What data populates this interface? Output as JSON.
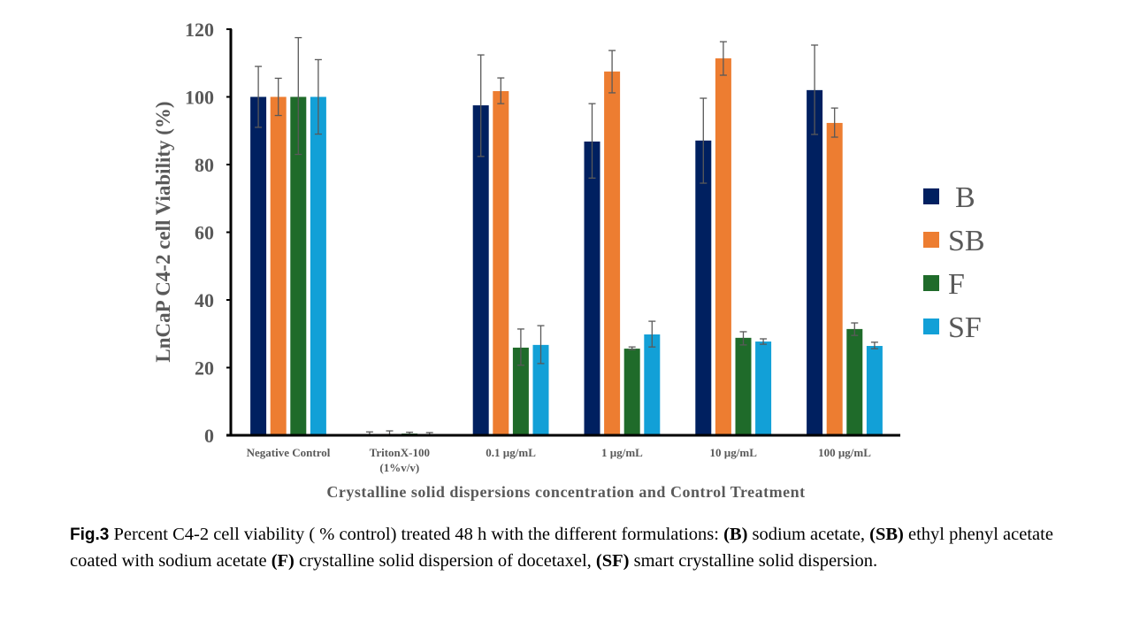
{
  "chart_data": {
    "type": "bar",
    "title": "",
    "xlabel": "Crystalline solid dispersions concentration and Control Treatment",
    "ylabel": "LnCaP C4-2  cell Viability (%)",
    "ylim": [
      0,
      120
    ],
    "yticks": [
      0,
      20,
      40,
      60,
      80,
      100,
      120
    ],
    "grid": false,
    "legend_position": "right",
    "categories": [
      "Negative Control",
      "TritonX-100\n(1%v/v)",
      "0.1 µg/mL",
      "1 µg/mL",
      "10 µg/mL",
      "100 µg/mL"
    ],
    "series": [
      {
        "name": "B",
        "color": "#002060",
        "values": [
          100,
          0.3,
          97.5,
          86.8,
          87.1,
          102.0
        ],
        "err_low": [
          91,
          0,
          82.4,
          76,
          74.5,
          88.9
        ],
        "err_high": [
          109,
          1.0,
          112.4,
          98,
          99.6,
          115.3
        ]
      },
      {
        "name": "SB",
        "color": "#ED7D31",
        "values": [
          100,
          0.4,
          101.7,
          107.5,
          111.4,
          92.3
        ],
        "err_low": [
          94.5,
          0,
          98.0,
          101.2,
          106.4,
          88.1
        ],
        "err_high": [
          105.5,
          1.3,
          105.6,
          113.7,
          116.3,
          96.7
        ]
      },
      {
        "name": "F",
        "color": "#1F6B2A",
        "values": [
          100,
          0.5,
          25.9,
          25.6,
          28.8,
          31.4
        ],
        "err_low": [
          83,
          0.1,
          20.7,
          25.3,
          26.7,
          29.5
        ],
        "err_high": [
          117.5,
          0.9,
          31.4,
          26.1,
          30.6,
          33.2
        ]
      },
      {
        "name": "SF",
        "color": "#12A0D7",
        "values": [
          100,
          0.2,
          26.7,
          29.8,
          27.7,
          26.4
        ],
        "err_low": [
          89,
          0,
          21.2,
          26.1,
          26.9,
          25.6
        ],
        "err_high": [
          111,
          0.8,
          32.4,
          33.7,
          28.5,
          27.5
        ]
      }
    ]
  },
  "caption": {
    "fig_label": "Fig.3",
    "parts": [
      {
        "text": " Percent C4-2 cell viability ( % control) treated 48 h with the different formulations: ",
        "bold": false
      },
      {
        "text": "(B)",
        "bold": true
      },
      {
        "text": " sodium acetate, ",
        "bold": false
      },
      {
        "text": "(SB)",
        "bold": true
      },
      {
        "text": " ethyl phenyl acetate coated with sodium acetate ",
        "bold": false
      },
      {
        "text": "(F)",
        "bold": true
      },
      {
        "text": " crystalline solid dispersion of docetaxel, ",
        "bold": false
      },
      {
        "text": "(SF)",
        "bold": true
      },
      {
        "text": " smart crystalline solid dispersion.",
        "bold": false
      }
    ]
  }
}
